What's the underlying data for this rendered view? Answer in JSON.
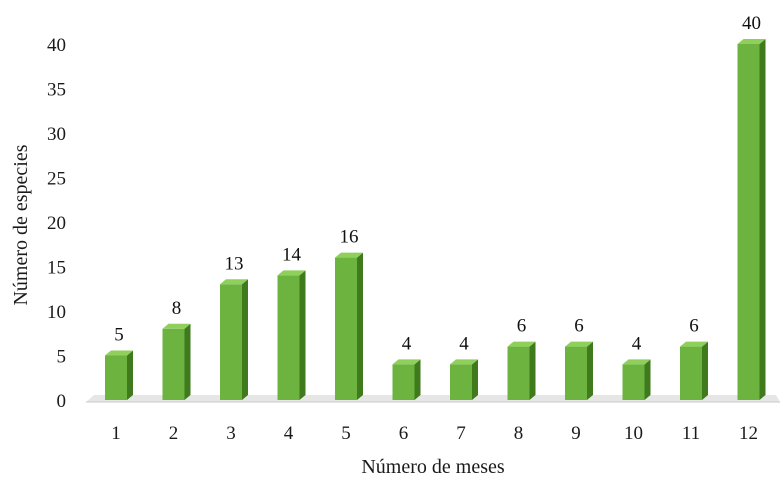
{
  "chart_data": {
    "type": "bar",
    "title": "",
    "xlabel": "Número de meses",
    "ylabel": "Número de especies",
    "categories": [
      "1",
      "2",
      "3",
      "4",
      "5",
      "6",
      "7",
      "8",
      "9",
      "10",
      "11",
      "12"
    ],
    "values": [
      5,
      8,
      13,
      14,
      16,
      4,
      4,
      6,
      6,
      4,
      6,
      40
    ],
    "data_labels": [
      "5",
      "8",
      "13",
      "14",
      "16",
      "4",
      "4",
      "6",
      "6",
      "4",
      "6",
      "40"
    ],
    "yticks": [
      "0",
      "5",
      "10",
      "15",
      "20",
      "25",
      "30",
      "35",
      "40"
    ],
    "ylim": [
      0,
      40
    ],
    "grid": false,
    "legend": "none",
    "style": "3d-bars",
    "colors": {
      "bar_front": "#6cb33f",
      "bar_side": "#3f7a1c",
      "bar_top": "#8fd05a",
      "floor": "#e6e6e6"
    }
  }
}
